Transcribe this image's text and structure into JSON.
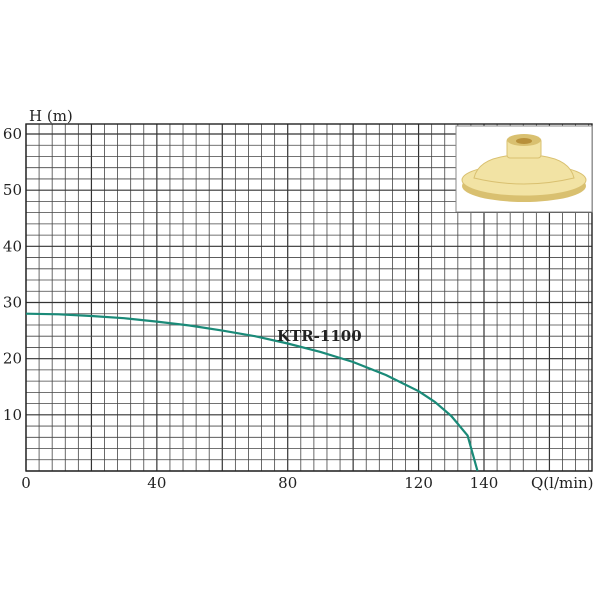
{
  "chart_data": {
    "type": "line",
    "xlabel": "Q(l/min)",
    "ylabel": "H (m)",
    "xlim": [
      0,
      160
    ],
    "ylim": [
      0,
      62
    ],
    "x_ticks": [
      0,
      40,
      80,
      120,
      140
    ],
    "y_ticks": [
      10,
      20,
      30,
      40,
      50,
      60
    ],
    "grid": true,
    "series": [
      {
        "name": "KTR-1100",
        "color": "#1a8a78",
        "x": [
          0,
          10,
          20,
          30,
          40,
          50,
          60,
          70,
          80,
          90,
          100,
          110,
          120,
          125,
          130,
          135,
          138
        ],
        "y": [
          28,
          27.9,
          27.6,
          27.2,
          26.6,
          25.9,
          25,
          24,
          22.7,
          21.2,
          19.4,
          17.1,
          14.2,
          12.3,
          9.8,
          6.3,
          0
        ]
      }
    ]
  },
  "inset_image": {
    "icon": "impeller-photo",
    "body_color": "#f2e3a4",
    "shadow_color": "#d9c070",
    "hub_color": "#b8903a"
  }
}
